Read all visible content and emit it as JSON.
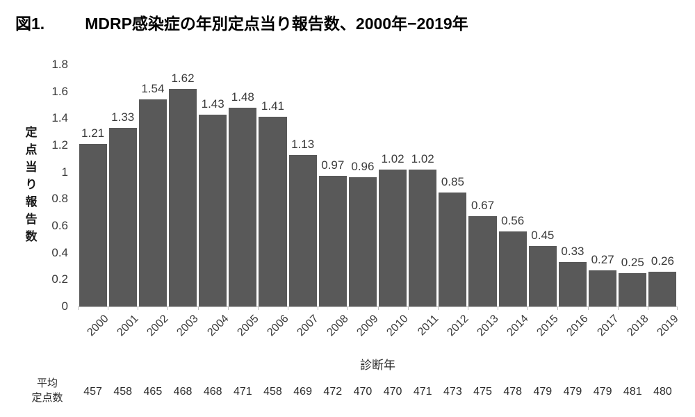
{
  "title": {
    "prefix": "図1.",
    "main": "MDRP感染症の年別定点当り報告数、2000年−2019年"
  },
  "colors": {
    "bar": "#595959",
    "axis": "#bfbfbf",
    "text": "#3a3a3a",
    "title": "#000000"
  },
  "chart_data": {
    "type": "bar",
    "title": "図1. MDRP感染症の年別定点当り報告数、2000年−2019年",
    "categories": [
      "2000",
      "2001",
      "2002",
      "2003",
      "2004",
      "2005",
      "2006",
      "2007",
      "2008",
      "2009",
      "2010",
      "2011",
      "2012",
      "2013",
      "2014",
      "2015",
      "2016",
      "2017",
      "2018",
      "2019"
    ],
    "values": [
      1.21,
      1.33,
      1.54,
      1.62,
      1.43,
      1.48,
      1.41,
      1.13,
      0.97,
      0.96,
      1.02,
      1.02,
      0.85,
      0.67,
      0.56,
      0.45,
      0.33,
      0.27,
      0.25,
      0.26
    ],
    "xlabel": "診断年",
    "ylabel": "定点当り報告数",
    "ylim": [
      0,
      1.8
    ],
    "y_tick_labels": [
      "0",
      "0.2",
      "0.4",
      "0.6",
      "0.8",
      "1",
      "1.2",
      "1.4",
      "1.6",
      "1.8"
    ],
    "grid": false,
    "legend": false,
    "bar_color": "#595959",
    "avg_row": {
      "label_line1": "平均",
      "label_line2": "定点数",
      "values": [
        457,
        458,
        465,
        468,
        468,
        471,
        458,
        469,
        472,
        470,
        470,
        471,
        473,
        475,
        478,
        479,
        479,
        479,
        481,
        480
      ]
    }
  }
}
